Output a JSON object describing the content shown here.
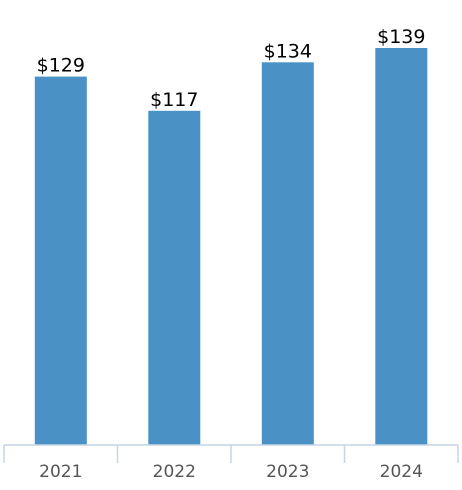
{
  "chart_data": {
    "type": "bar",
    "categories": [
      "2021",
      "2022",
      "2023",
      "2024"
    ],
    "values": [
      129,
      117,
      134,
      139
    ],
    "data_labels": [
      "$129",
      "$117",
      "$134",
      "$139"
    ],
    "title": "",
    "xlabel": "",
    "ylabel": "",
    "ylim": [
      0,
      139
    ],
    "grid": false,
    "legend": "none"
  },
  "colors": {
    "bar": "#4a92c5",
    "axis": "#c6d4e4"
  }
}
